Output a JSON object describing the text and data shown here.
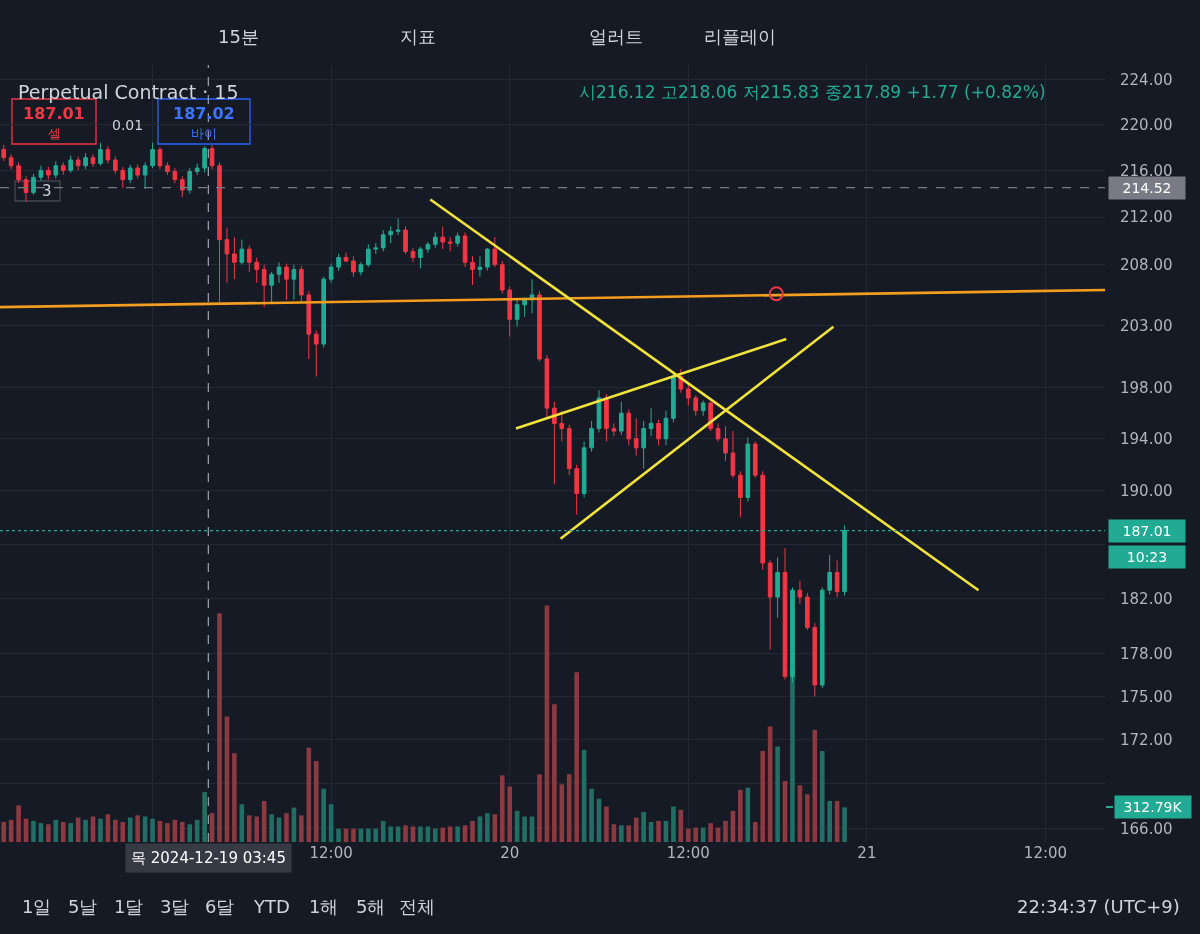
{
  "chart_data": {
    "type": "candlestick",
    "title": "Perpetual Contract · 15",
    "x": [
      "2024-12-18T14:00",
      "2024-12-18T14:30",
      "2024-12-18T15:00",
      "2024-12-18T15:30",
      "2024-12-18T16:00",
      "2024-12-18T16:30",
      "2024-12-18T17:00",
      "2024-12-18T17:30",
      "2024-12-18T18:00",
      "2024-12-18T18:30",
      "2024-12-18T19:00",
      "2024-12-18T19:30",
      "2024-12-18T20:00",
      "2024-12-18T20:30",
      "2024-12-18T21:00",
      "2024-12-18T21:30",
      "2024-12-18T22:00",
      "2024-12-18T22:30",
      "2024-12-18T23:00",
      "2024-12-18T23:30",
      "2024-12-19T00:00",
      "2024-12-19T00:30",
      "2024-12-19T01:00",
      "2024-12-19T01:30",
      "2024-12-19T02:00",
      "2024-12-19T02:30",
      "2024-12-19T03:00",
      "2024-12-19T03:30",
      "2024-12-19T04:00",
      "2024-12-19T04:30",
      "2024-12-19T05:00",
      "2024-12-19T05:30",
      "2024-12-19T06:00",
      "2024-12-19T06:30",
      "2024-12-19T07:00",
      "2024-12-19T07:30",
      "2024-12-19T08:00",
      "2024-12-19T08:30",
      "2024-12-19T09:00",
      "2024-12-19T09:30",
      "2024-12-19T10:00",
      "2024-12-19T10:30",
      "2024-12-19T11:00",
      "2024-12-19T11:30",
      "2024-12-19T12:00",
      "2024-12-19T12:30",
      "2024-12-19T13:00",
      "2024-12-19T13:30",
      "2024-12-19T14:00",
      "2024-12-19T14:30",
      "2024-12-19T15:00",
      "2024-12-19T15:30",
      "2024-12-19T16:00",
      "2024-12-19T16:30",
      "2024-12-19T17:00",
      "2024-12-19T17:30",
      "2024-12-19T18:00",
      "2024-12-19T18:30",
      "2024-12-19T19:00",
      "2024-12-19T19:30",
      "2024-12-19T20:00",
      "2024-12-19T20:30",
      "2024-12-19T21:00",
      "2024-12-19T21:30",
      "2024-12-19T22:00",
      "2024-12-19T22:30",
      "2024-12-19T23:00",
      "2024-12-19T23:30",
      "2024-12-20T00:00",
      "2024-12-20T00:30",
      "2024-12-20T01:00",
      "2024-12-20T01:30",
      "2024-12-20T02:00",
      "2024-12-20T02:30",
      "2024-12-20T03:00",
      "2024-12-20T03:30",
      "2024-12-20T04:00",
      "2024-12-20T04:30",
      "2024-12-20T05:00",
      "2024-12-20T05:30",
      "2024-12-20T06:00",
      "2024-12-20T06:30",
      "2024-12-20T07:00",
      "2024-12-20T07:30",
      "2024-12-20T08:00",
      "2024-12-20T08:30",
      "2024-12-20T09:00",
      "2024-12-20T09:30",
      "2024-12-20T10:00",
      "2024-12-20T10:30",
      "2024-12-20T11:00",
      "2024-12-20T11:30",
      "2024-12-20T12:00",
      "2024-12-20T12:30",
      "2024-12-20T13:00",
      "2024-12-20T13:30",
      "2024-12-20T14:00",
      "2024-12-20T14:30",
      "2024-12-20T15:00",
      "2024-12-20T15:30",
      "2024-12-20T16:00",
      "2024-12-20T16:30",
      "2024-12-20T17:00",
      "2024-12-20T17:30",
      "2024-12-20T18:00",
      "2024-12-20T18:30",
      "2024-12-20T19:00",
      "2024-12-20T19:30",
      "2024-12-20T20:00",
      "2024-12-20T20:30",
      "2024-12-20T21:00",
      "2024-12-20T21:30",
      "2024-12-20T22:00",
      "2024-12-20T22:30"
    ],
    "ohlc": [
      [
        217.8,
        218.2,
        216.8,
        217.1
      ],
      [
        217.1,
        217.4,
        216.1,
        216.4
      ],
      [
        216.4,
        216.7,
        214.9,
        215.2
      ],
      [
        215.2,
        215.5,
        213.3,
        214.1
      ],
      [
        214.1,
        215.7,
        213.9,
        215.4
      ],
      [
        215.4,
        216.4,
        215.1,
        216.0
      ],
      [
        216.0,
        216.3,
        215.2,
        215.6
      ],
      [
        215.6,
        216.8,
        215.3,
        216.4
      ],
      [
        216.4,
        216.7,
        215.6,
        216.0
      ],
      [
        216.0,
        217.3,
        215.8,
        216.9
      ],
      [
        216.9,
        217.2,
        216.0,
        216.4
      ],
      [
        216.4,
        217.5,
        216.1,
        217.1
      ],
      [
        217.1,
        217.4,
        216.3,
        216.6
      ],
      [
        216.6,
        218.4,
        216.4,
        217.8
      ],
      [
        217.8,
        218.1,
        216.6,
        216.9
      ],
      [
        216.9,
        217.2,
        215.7,
        216.0
      ],
      [
        216.0,
        216.3,
        214.5,
        215.2
      ],
      [
        215.2,
        216.5,
        214.9,
        216.2
      ],
      [
        216.2,
        216.5,
        215.3,
        215.6
      ],
      [
        215.6,
        216.7,
        214.4,
        216.4
      ],
      [
        216.4,
        218.4,
        216.2,
        217.8
      ],
      [
        217.8,
        218.0,
        216.1,
        216.4
      ],
      [
        216.4,
        216.7,
        215.6,
        215.9
      ],
      [
        215.9,
        216.2,
        214.9,
        215.2
      ],
      [
        215.2,
        215.5,
        213.7,
        214.3
      ],
      [
        214.3,
        216.2,
        214.0,
        215.9
      ],
      [
        215.9,
        216.6,
        215.6,
        216.2
      ],
      [
        216.2,
        218.1,
        215.8,
        217.9
      ],
      [
        217.9,
        218.2,
        216.1,
        216.4
      ],
      [
        216.4,
        216.7,
        204.9,
        210.1
      ],
      [
        210.1,
        211.1,
        206.5,
        208.9
      ],
      [
        208.9,
        210.3,
        206.8,
        208.2
      ],
      [
        208.2,
        210.1,
        208.0,
        209.3
      ],
      [
        209.3,
        209.6,
        207.4,
        208.2
      ],
      [
        208.2,
        208.6,
        206.5,
        207.6
      ],
      [
        207.6,
        208.0,
        204.5,
        206.3
      ],
      [
        206.3,
        207.4,
        204.9,
        207.2
      ],
      [
        207.2,
        208.2,
        206.5,
        207.8
      ],
      [
        207.8,
        208.1,
        205.1,
        206.8
      ],
      [
        206.8,
        208.0,
        205.1,
        207.6
      ],
      [
        207.6,
        207.9,
        204.9,
        205.5
      ],
      [
        205.5,
        205.8,
        200.3,
        202.3
      ],
      [
        202.3,
        202.6,
        198.9,
        201.5
      ],
      [
        201.5,
        207.0,
        201.2,
        206.8
      ],
      [
        206.8,
        208.1,
        206.5,
        207.8
      ],
      [
        207.8,
        208.9,
        207.5,
        208.6
      ],
      [
        208.6,
        209.0,
        208.2,
        208.3
      ],
      [
        208.3,
        208.7,
        207.0,
        207.4
      ],
      [
        207.4,
        208.2,
        207.1,
        208.0
      ],
      [
        208.0,
        209.7,
        207.8,
        209.3
      ],
      [
        209.3,
        209.8,
        208.9,
        209.4
      ],
      [
        209.4,
        210.9,
        209.1,
        210.5
      ],
      [
        210.5,
        211.2,
        209.8,
        210.8
      ],
      [
        210.8,
        211.9,
        210.5,
        210.9
      ],
      [
        210.9,
        211.2,
        208.9,
        209.1
      ],
      [
        209.1,
        209.4,
        208.2,
        208.6
      ],
      [
        208.6,
        209.5,
        207.7,
        209.3
      ],
      [
        209.3,
        209.9,
        209.0,
        209.7
      ],
      [
        209.7,
        210.7,
        209.4,
        210.3
      ],
      [
        210.3,
        211.2,
        209.3,
        209.9
      ],
      [
        209.9,
        210.3,
        209.1,
        209.8
      ],
      [
        209.8,
        210.7,
        209.5,
        210.4
      ],
      [
        210.4,
        210.7,
        207.8,
        208.2
      ],
      [
        208.2,
        208.7,
        206.3,
        207.6
      ],
      [
        207.6,
        208.7,
        207.0,
        207.8
      ],
      [
        207.8,
        209.4,
        207.5,
        209.3
      ],
      [
        209.3,
        210.3,
        207.8,
        208.0
      ],
      [
        208.0,
        208.3,
        205.6,
        205.9
      ],
      [
        205.9,
        206.2,
        202.1,
        203.5
      ],
      [
        203.5,
        205.1,
        202.9,
        204.7
      ],
      [
        204.7,
        205.3,
        203.7,
        205.1
      ],
      [
        205.1,
        206.8,
        204.0,
        205.5
      ],
      [
        205.5,
        205.8,
        200.1,
        200.3
      ],
      [
        200.3,
        200.6,
        195.6,
        196.4
      ],
      [
        196.4,
        196.9,
        190.5,
        195.2
      ],
      [
        195.2,
        196.2,
        193.8,
        194.8
      ],
      [
        194.8,
        195.1,
        191.2,
        191.7
      ],
      [
        191.7,
        192.0,
        188.2,
        189.8
      ],
      [
        189.8,
        193.8,
        189.5,
        193.3
      ],
      [
        193.3,
        195.4,
        193.0,
        194.8
      ],
      [
        194.8,
        197.8,
        194.5,
        197.2
      ],
      [
        197.2,
        197.5,
        193.8,
        194.8
      ],
      [
        194.8,
        195.2,
        194.2,
        194.6
      ],
      [
        194.6,
        196.9,
        194.3,
        196.0
      ],
      [
        196.0,
        196.3,
        193.5,
        194.0
      ],
      [
        194.0,
        195.6,
        192.7,
        193.3
      ],
      [
        193.3,
        195.4,
        191.7,
        194.8
      ],
      [
        194.8,
        196.4,
        194.2,
        195.2
      ],
      [
        195.2,
        195.5,
        193.5,
        194.0
      ],
      [
        194.0,
        196.2,
        193.5,
        195.6
      ],
      [
        195.6,
        199.1,
        195.3,
        198.9
      ],
      [
        198.9,
        199.5,
        197.6,
        197.9
      ],
      [
        197.9,
        198.3,
        196.6,
        197.2
      ],
      [
        197.2,
        197.4,
        195.8,
        196.2
      ],
      [
        196.2,
        197.0,
        195.8,
        196.8
      ],
      [
        196.8,
        196.9,
        194.6,
        194.8
      ],
      [
        194.8,
        195.2,
        193.8,
        194.0
      ],
      [
        194.0,
        195.0,
        192.3,
        192.9
      ],
      [
        192.9,
        194.6,
        191.0,
        191.2
      ],
      [
        191.2,
        191.5,
        188.0,
        189.5
      ],
      [
        189.5,
        194.1,
        189.2,
        193.6
      ],
      [
        193.6,
        193.8,
        191.0,
        191.2
      ],
      [
        191.2,
        191.5,
        184.1,
        184.6
      ],
      [
        184.6,
        184.8,
        178.3,
        182.1
      ],
      [
        182.1,
        185.0,
        180.6,
        183.9
      ],
      [
        183.9,
        185.7,
        176.2,
        176.4
      ],
      [
        176.4,
        182.8,
        176.0,
        182.6
      ],
      [
        182.6,
        183.3,
        181.6,
        182.1
      ],
      [
        182.1,
        182.4,
        179.7,
        179.9
      ],
      [
        179.9,
        180.2,
        175.0,
        175.8
      ],
      [
        175.8,
        182.8,
        175.6,
        182.6
      ],
      [
        182.6,
        185.2,
        182.3,
        183.9
      ],
      [
        183.9,
        184.8,
        182.1,
        182.5
      ],
      [
        182.5,
        187.4,
        182.2,
        187.01
      ]
    ],
    "colors": [
      "#f23645",
      "#f23645",
      "#f23645",
      "#f23645",
      "#22ab94",
      "#22ab94",
      "#f23645",
      "#22ab94",
      "#f23645",
      "#22ab94",
      "#f23645",
      "#22ab94",
      "#f23645",
      "#22ab94",
      "#f23645",
      "#f23645",
      "#f23645",
      "#22ab94",
      "#f23645",
      "#22ab94",
      "#22ab94",
      "#f23645",
      "#f23645",
      "#f23645",
      "#f23645",
      "#22ab94",
      "#22ab94",
      "#22ab94",
      "#f23645",
      "#f23645",
      "#f23645",
      "#f23645",
      "#22ab94",
      "#f23645",
      "#f23645",
      "#f23645",
      "#22ab94",
      "#22ab94",
      "#f23645",
      "#22ab94",
      "#f23645",
      "#f23645",
      "#f23645",
      "#22ab94",
      "#22ab94",
      "#22ab94",
      "#f23645",
      "#f23645",
      "#22ab94",
      "#22ab94",
      "#22ab94",
      "#22ab94",
      "#22ab94",
      "#22ab94",
      "#f23645",
      "#f23645",
      "#22ab94",
      "#22ab94",
      "#22ab94",
      "#f23645",
      "#f23645",
      "#22ab94",
      "#f23645",
      "#f23645",
      "#22ab94",
      "#22ab94",
      "#f23645",
      "#f23645",
      "#f23645",
      "#22ab94",
      "#22ab94",
      "#22ab94",
      "#f23645",
      "#f23645",
      "#f23645",
      "#f23645",
      "#f23645",
      "#f23645",
      "#22ab94",
      "#22ab94",
      "#22ab94",
      "#f23645",
      "#f23645",
      "#22ab94",
      "#f23645",
      "#f23645",
      "#22ab94",
      "#22ab94",
      "#f23645",
      "#22ab94",
      "#22ab94",
      "#f23645",
      "#f23645",
      "#f23645",
      "#22ab94",
      "#f23645",
      "#f23645",
      "#f23645",
      "#f23645",
      "#f23645",
      "#22ab94",
      "#f23645",
      "#f23645",
      "#f23645",
      "#22ab94",
      "#f23645",
      "#22ab94",
      "#f23645",
      "#f23645",
      "#f23645",
      "#22ab94",
      "#22ab94",
      "#f23645",
      "#22ab94"
    ],
    "series": [
      {
        "type": "bar",
        "axis": "y2",
        "values": [
          180,
          200,
          330,
          210,
          190,
          170,
          160,
          200,
          180,
          170,
          220,
          200,
          230,
          210,
          250,
          200,
          180,
          220,
          240,
          230,
          210,
          190,
          170,
          200,
          180,
          160,
          200,
          450,
          260,
          2060,
          1130,
          800,
          340,
          240,
          230,
          370,
          250,
          220,
          260,
          310,
          240,
          850,
          730,
          480,
          340,
          120,
          120,
          120,
          120,
          120,
          120,
          190,
          140,
          140,
          150,
          140,
          140,
          140,
          120,
          130,
          140,
          140,
          150,
          190,
          230,
          260,
          250,
          600,
          500,
          280,
          230,
          230,
          610,
          2130,
          1240,
          520,
          610,
          1530,
          830,
          480,
          390,
          320,
          160,
          150,
          150,
          220,
          270,
          180,
          190,
          190,
          320,
          290,
          120,
          130,
          130,
          170,
          130,
          190,
          280,
          470,
          490,
          180,
          820,
          1040,
          860,
          550,
          1570,
          510,
          430,
          1010,
          820,
          370,
          370,
          312.79
        ],
        "colors": [
          "#8a3a40",
          "#8a3a40",
          "#8a3a40",
          "#8a3a40",
          "#236e64",
          "#236e64",
          "#8a3a40",
          "#236e64",
          "#8a3a40",
          "#236e64",
          "#8a3a40",
          "#236e64",
          "#8a3a40",
          "#236e64",
          "#8a3a40",
          "#8a3a40",
          "#8a3a40",
          "#236e64",
          "#8a3a40",
          "#236e64",
          "#236e64",
          "#8a3a40",
          "#8a3a40",
          "#8a3a40",
          "#8a3a40",
          "#236e64",
          "#236e64",
          "#236e64",
          "#8a3a40",
          "#8a3a40",
          "#8a3a40",
          "#8a3a40",
          "#236e64",
          "#8a3a40",
          "#8a3a40",
          "#8a3a40",
          "#236e64",
          "#236e64",
          "#8a3a40",
          "#236e64",
          "#8a3a40",
          "#8a3a40",
          "#8a3a40",
          "#236e64",
          "#236e64",
          "#236e64",
          "#8a3a40",
          "#8a3a40",
          "#236e64",
          "#236e64",
          "#236e64",
          "#236e64",
          "#236e64",
          "#236e64",
          "#8a3a40",
          "#8a3a40",
          "#236e64",
          "#236e64",
          "#236e64",
          "#8a3a40",
          "#8a3a40",
          "#236e64",
          "#8a3a40",
          "#8a3a40",
          "#236e64",
          "#236e64",
          "#8a3a40",
          "#8a3a40",
          "#8a3a40",
          "#236e64",
          "#236e64",
          "#236e64",
          "#8a3a40",
          "#8a3a40",
          "#8a3a40",
          "#8a3a40",
          "#8a3a40",
          "#8a3a40",
          "#236e64",
          "#236e64",
          "#236e64",
          "#8a3a40",
          "#8a3a40",
          "#236e64",
          "#8a3a40",
          "#8a3a40",
          "#236e64",
          "#236e64",
          "#8a3a40",
          "#236e64",
          "#236e64",
          "#8a3a40",
          "#8a3a40",
          "#8a3a40",
          "#236e64",
          "#8a3a40",
          "#8a3a40",
          "#8a3a40",
          "#8a3a40",
          "#8a3a40",
          "#236e64",
          "#8a3a40",
          "#8a3a40",
          "#8a3a40",
          "#236e64",
          "#8a3a40",
          "#236e64",
          "#8a3a40",
          "#8a3a40",
          "#8a3a40",
          "#236e64",
          "#236e64",
          "#8a3a40",
          "#236e64"
        ]
      },
      {
        "type": "line",
        "color": "#f59d1e",
        "x": [
          "2024-12-18T13:45",
          "2024-12-21T16:00"
        ],
        "values": [
          204.5,
          205.9
        ]
      },
      {
        "type": "line",
        "color": "#f2e33a",
        "x": [
          "2024-12-19T18:40",
          "2024-12-21T07:30"
        ],
        "values": [
          213.5,
          182.6
        ]
      },
      {
        "type": "line",
        "color": "#f2e33a",
        "x": [
          "2024-12-20T00:25",
          "2024-12-20T18:35"
        ],
        "values": [
          194.8,
          201.9
        ]
      },
      {
        "type": "line",
        "color": "#f2e33a",
        "x": [
          "2024-12-20T03:25",
          "2024-12-20T21:45"
        ],
        "values": [
          186.4,
          202.9
        ]
      },
      {
        "type": "scatter",
        "color": "#f23645",
        "x": [
          "2024-12-20T17:55"
        ],
        "values": [
          205.6
        ]
      }
    ],
    "xlim": [
      "2024-12-18T13:45",
      "2024-12-21T16:00"
    ],
    "xticks": [
      {
        "value": "2024-12-19",
        "label": null
      },
      {
        "value": "2024-12-19T12:00",
        "label": "12:00"
      },
      {
        "value": "2024-12-20",
        "label": "20"
      },
      {
        "value": "2024-12-20T12:00",
        "label": "12:00"
      },
      {
        "value": "2024-12-21",
        "label": "21"
      },
      {
        "value": "2024-12-21T12:00",
        "label": "12:00"
      }
    ],
    "ylim": [
      165.1,
      225.3
    ],
    "log": true,
    "yticks": [
      {
        "value": 224,
        "label": "224.00"
      },
      {
        "value": 220,
        "label": "220.00"
      },
      {
        "value": 216,
        "label": "216.00"
      },
      {
        "value": 212,
        "label": "212.00"
      },
      {
        "value": 208,
        "label": "208.00"
      },
      {
        "value": 203,
        "label": "203.00"
      },
      {
        "value": 198,
        "label": "198.00"
      },
      {
        "value": 194,
        "label": "194.00"
      },
      {
        "value": 190,
        "label": "190.00"
      },
      {
        "value": 186,
        "label": null
      },
      {
        "value": 182,
        "label": "182.00"
      },
      {
        "value": 178,
        "label": "178.00"
      },
      {
        "value": 175,
        "label": "175.00"
      },
      {
        "value": 172,
        "label": "172.00"
      },
      {
        "value": 169,
        "label": null
      },
      {
        "value": 166,
        "label": "166.00"
      }
    ],
    "y2lim": [
      0,
      7000
    ],
    "y2ticks": [
      {
        "value": 312.79,
        "label": "312.79K"
      }
    ],
    "ref_lines": [
      {
        "axis": "y",
        "value": 214.52,
        "label": "214.52",
        "color": "#787b86",
        "line_style": "dashed"
      },
      {
        "axis": "y",
        "value": 187.01,
        "label": "187.01",
        "color": "#22ab94",
        "line_style": "dotted"
      },
      {
        "axis": "x",
        "value": "2024-12-19T03:45",
        "label": "목 2024-12-19 03:45",
        "color": "#9598a1",
        "line_style": "dashed"
      }
    ],
    "grid": true,
    "annotations": [
      "15분",
      "지표",
      "얼러트",
      "리플레이",
      "시216.12 고218.06 저215.83 종217.89 +1.77 (+0.82%)",
      "187.01",
      "셀",
      "0.01",
      "187.02",
      "바이",
      "3",
      "10:23",
      "1일",
      "5날",
      "1달",
      "3달",
      "6달",
      "YTD",
      "1해",
      "5해",
      "전체",
      "22:34:37 (UTC+9)"
    ]
  }
}
